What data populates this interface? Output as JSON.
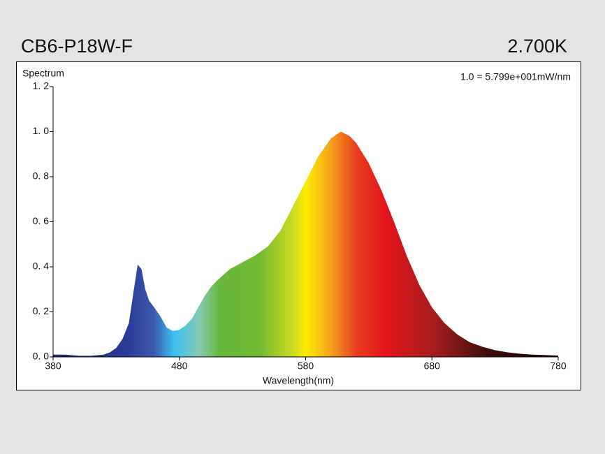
{
  "chart_data": {
    "type": "area",
    "title": "CB6-P18W-F",
    "subtitle": "2.700K",
    "y_label": "Spectrum",
    "annotation": "1.0 =  5.799e+001mW/nm",
    "x_label": "Wavelength(nm)",
    "x": [
      380,
      390,
      400,
      410,
      420,
      425,
      430,
      435,
      440,
      444,
      447,
      450,
      453,
      456,
      460,
      465,
      470,
      475,
      480,
      485,
      490,
      495,
      500,
      505,
      510,
      520,
      530,
      540,
      550,
      560,
      570,
      580,
      590,
      600,
      608,
      615,
      620,
      630,
      640,
      650,
      660,
      670,
      680,
      690,
      700,
      710,
      720,
      730,
      740,
      750,
      760,
      770,
      780
    ],
    "values": [
      0.01,
      0.01,
      0.005,
      0.005,
      0.01,
      0.02,
      0.04,
      0.08,
      0.15,
      0.3,
      0.41,
      0.39,
      0.3,
      0.25,
      0.22,
      0.18,
      0.13,
      0.115,
      0.12,
      0.14,
      0.17,
      0.22,
      0.27,
      0.31,
      0.34,
      0.39,
      0.42,
      0.45,
      0.49,
      0.56,
      0.67,
      0.78,
      0.89,
      0.97,
      1.0,
      0.98,
      0.95,
      0.86,
      0.74,
      0.6,
      0.45,
      0.32,
      0.22,
      0.15,
      0.1,
      0.065,
      0.045,
      0.03,
      0.02,
      0.014,
      0.01,
      0.008,
      0.006
    ],
    "xlim": [
      380,
      780
    ],
    "xticks": [
      380,
      480,
      580,
      680,
      780
    ],
    "ylim": [
      0,
      1.2
    ],
    "yticks": [
      {
        "value": 0,
        "label": "0. 0"
      },
      {
        "value": 0.2,
        "label": "0. 2"
      },
      {
        "value": 0.4,
        "label": "0. 4"
      },
      {
        "value": 0.6,
        "label": "0. 6"
      },
      {
        "value": 0.8,
        "label": "0. 8"
      },
      {
        "value": 1.0,
        "label": "1. 0"
      },
      {
        "value": 1.2,
        "label": "1. 2"
      }
    ]
  }
}
